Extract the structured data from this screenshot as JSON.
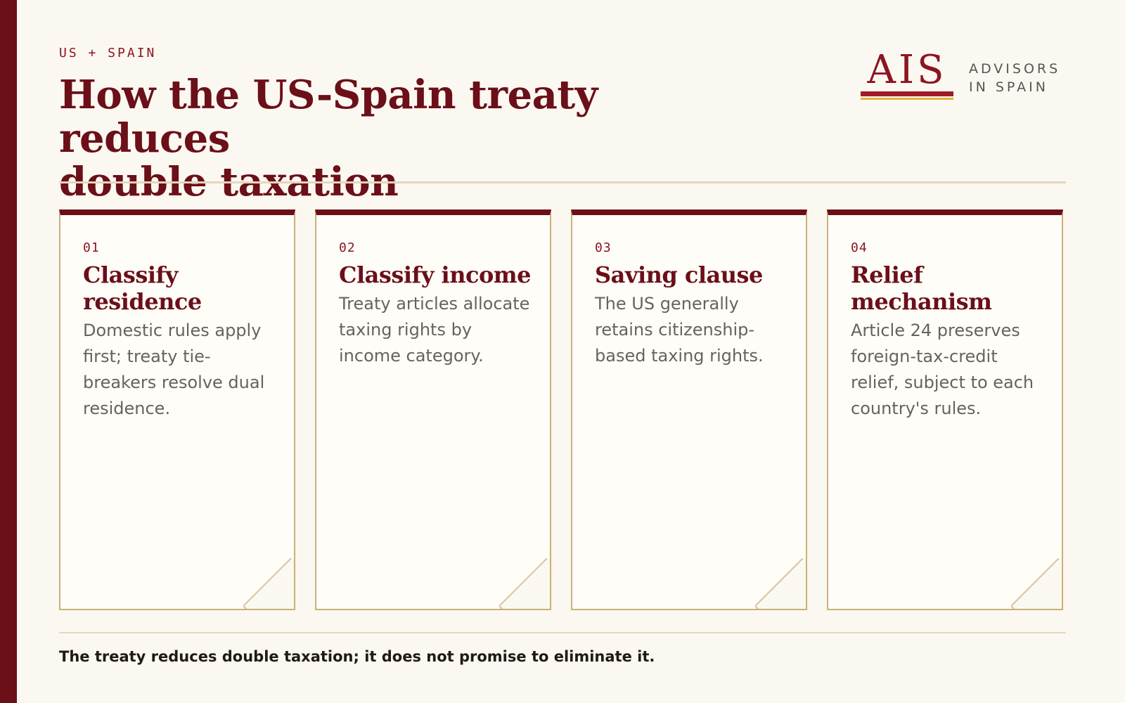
{
  "header": {
    "eyebrow": "US + SPAIN",
    "title_line1": "How the US-Spain treaty reduces",
    "title_line2": "double taxation"
  },
  "logo": {
    "mark": "AIS",
    "line1": "ADVISORS",
    "line2": "IN SPAIN"
  },
  "colors": {
    "brand_red": "#6b0f19",
    "accent_gold": "#e3b23c",
    "border_gold": "#cbb07a",
    "background": "#fbf8f1"
  },
  "cards": [
    {
      "number": "01",
      "title": "Classify residence",
      "body": "Domestic rules apply first; treaty tie-breakers resolve dual residence."
    },
    {
      "number": "02",
      "title": "Classify income",
      "body": "Treaty articles allocate taxing rights by income category."
    },
    {
      "number": "03",
      "title": "Saving clause",
      "body": "The US generally retains citizenship-based taxing rights."
    },
    {
      "number": "04",
      "title": "Relief mechanism",
      "body": "Article 24 preserves foreign-tax-credit relief, subject to each country's rules."
    }
  ],
  "footer": {
    "note": "The treaty reduces double taxation; it does not promise to eliminate it."
  }
}
